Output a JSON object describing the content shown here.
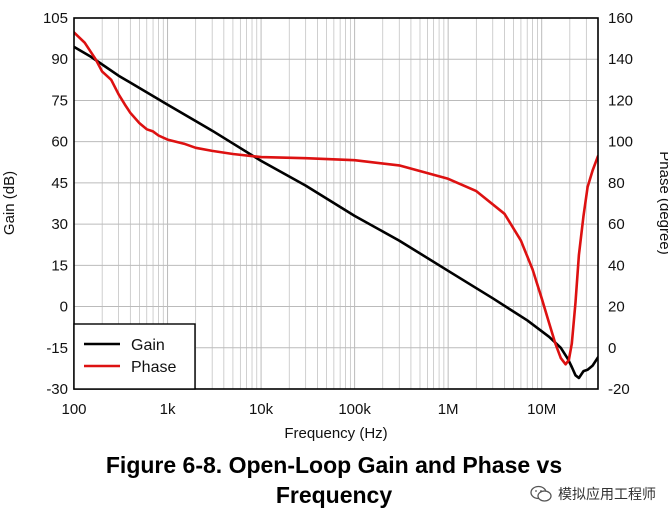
{
  "caption": {
    "line1": "Figure 6-8. Open-Loop Gain and Phase vs",
    "line2": "Frequency"
  },
  "watermark": {
    "text": "模拟应用工程师",
    "icon": "wechat-icon"
  },
  "colors": {
    "gain": "#000000",
    "phase": "#dd1111",
    "grid": "#bbbbbb"
  },
  "chart_data": {
    "type": "line",
    "xlabel": "Frequency (Hz)",
    "ylabel": "Gain (dB)",
    "y2label": "Phase (degree)",
    "xscale": "log",
    "xlim": [
      100,
      40000000
    ],
    "ylim": [
      -30,
      105
    ],
    "y2lim": [
      -20,
      160
    ],
    "xticks": [
      100,
      1000,
      10000,
      100000,
      1000000,
      10000000
    ],
    "xtick_labels": [
      "100",
      "1k",
      "10k",
      "100k",
      "1M",
      "10M"
    ],
    "yticks": [
      105,
      90,
      75,
      60,
      45,
      30,
      15,
      0,
      -15,
      -30
    ],
    "ytick_labels": [
      "105",
      "90",
      "75",
      "60",
      "45",
      "30",
      "15",
      "0",
      "-15",
      "-30"
    ],
    "y2ticks": [
      160,
      140,
      120,
      100,
      80,
      60,
      40,
      20,
      0,
      -20
    ],
    "y2tick_labels": [
      "160",
      "140",
      "120",
      "100",
      "80",
      "60",
      "40",
      "20",
      "0",
      "-20"
    ],
    "legend_position": "bottom-left",
    "series": [
      {
        "name": "Gain",
        "axis": "left",
        "x": [
          100,
          150,
          300,
          1000,
          3000,
          10000,
          30000,
          100000,
          300000,
          1000000,
          3000000,
          7000000,
          12000000,
          16000000,
          19000000,
          21000000,
          23000000,
          25000000,
          28000000,
          31000000,
          35000000,
          40000000
        ],
        "y": [
          94.5,
          91,
          84,
          73.5,
          64,
          53,
          44,
          33,
          24,
          13,
          3,
          -5,
          -11,
          -15,
          -19,
          -22,
          -25,
          -26,
          -23.5,
          -23,
          -21.5,
          -18.5
        ]
      },
      {
        "name": "Phase",
        "axis": "right",
        "x": [
          100,
          130,
          170,
          200,
          250,
          300,
          350,
          400,
          500,
          600,
          700,
          800,
          1000,
          1500,
          2000,
          3000,
          5000,
          10000,
          30000,
          100000,
          300000,
          1000000,
          2000000,
          4000000,
          6000000,
          8000000,
          10000000,
          12000000,
          14000000,
          16000000,
          18000000,
          19500000,
          21000000,
          23000000,
          25000000,
          28000000,
          31000000,
          35000000,
          40000000
        ],
        "y": [
          153,
          148,
          140,
          134,
          130,
          123,
          118,
          114,
          109,
          106,
          105,
          103,
          101,
          99,
          97,
          95.5,
          94,
          92.5,
          92,
          91,
          88.5,
          82,
          76,
          65,
          52,
          38,
          24,
          12,
          2,
          -5,
          -8,
          -6,
          2,
          22,
          45,
          64,
          78,
          86,
          93
        ]
      }
    ]
  }
}
